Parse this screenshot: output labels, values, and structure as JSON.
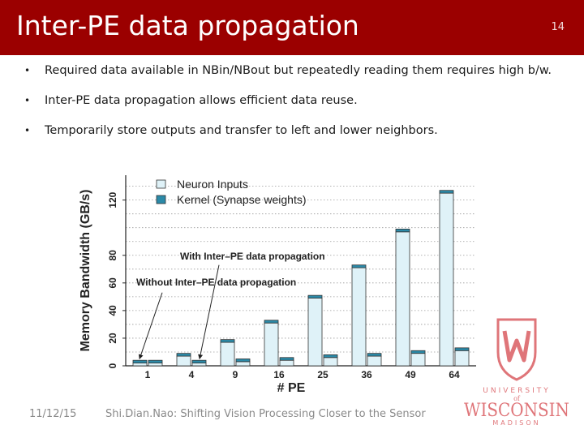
{
  "slide": {
    "title": "Inter-PE data propagation",
    "number": "14",
    "bullets": [
      "Required data available in NBin/NBout but repeatedly reading them requires high b/w.",
      "Inter-PE data propagation allows efficient data reuse.",
      "Temporarily store outputs and transfer to left and lower neighbors."
    ],
    "footer_date": "11/12/15",
    "footer_text": "Shi.Dian.Nao: Shifting Vision Processing Closer to the Sensor"
  },
  "logo": {
    "top_text": "UNIVERSITY",
    "of_text": "of",
    "name": "WISCONSIN",
    "sub_text": "MADISON",
    "color": "#c5050c"
  },
  "chart_data": {
    "type": "bar",
    "categories": [
      "1",
      "4",
      "9",
      "16",
      "25",
      "36",
      "49",
      "64"
    ],
    "series": [
      {
        "name": "Neuron Inputs",
        "values": [
          2,
          7,
          17,
          31,
          49,
          71,
          97,
          125
        ],
        "color": "#dff2f8"
      },
      {
        "name": "Kernel (Synapse weights)",
        "values": [
          2,
          2,
          3,
          4,
          6,
          7,
          9,
          11
        ],
        "color": "#2b8aa8"
      }
    ],
    "stacked_cap": 2,
    "xlabel": "# PE",
    "ylabel": "Memory Bandwidth (GB/s)",
    "ylim": [
      0,
      138
    ],
    "yticks": [
      0,
      20,
      40,
      60,
      80,
      120
    ],
    "grid": true,
    "legend": "top-left",
    "annotations": [
      {
        "text": "With Inter–PE data propagation",
        "target_category": "4"
      },
      {
        "text": "Without Inter–PE data propagation",
        "target_category": "1"
      }
    ]
  }
}
